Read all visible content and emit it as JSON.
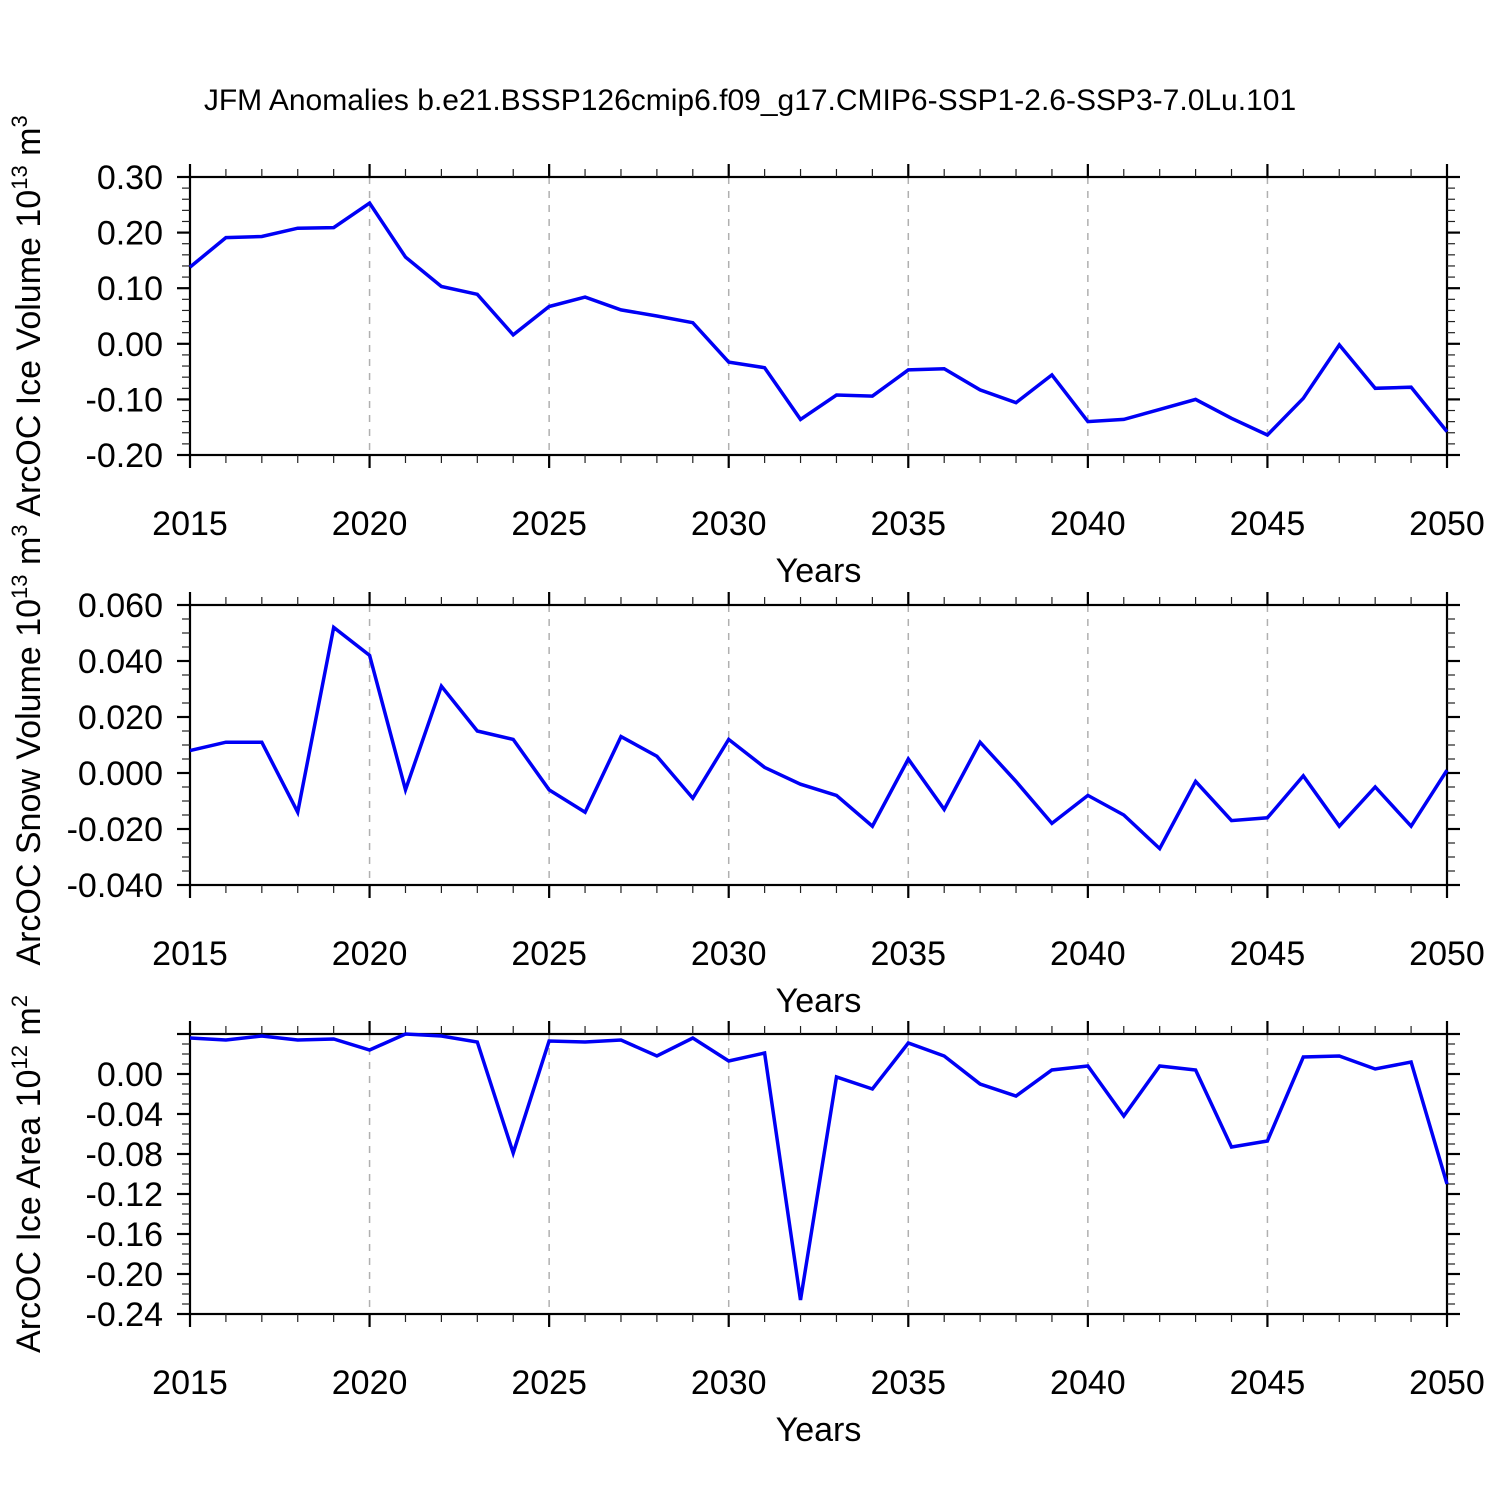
{
  "title": "JFM Anomalies b.e21.BSSP126cmip6.f09_g17.CMIP6-SSP1-2.6-SSP3-7.0Lu.101",
  "colors": {
    "line": "#0000f5",
    "frame": "#000000",
    "grid": "#b0b0b0",
    "minor_tick": "#222222",
    "text": "#000000",
    "background": "#ffffff"
  },
  "x_axis": {
    "label": "Years",
    "start": 2015,
    "end": 2050,
    "major_tick_labels": [
      "2015",
      "2020",
      "2025",
      "2030",
      "2035",
      "2040",
      "2045",
      "2050"
    ],
    "major_step": 5,
    "minor_step": 1,
    "gridline_years": [
      2020,
      2025,
      2030,
      2035,
      2040,
      2045
    ]
  },
  "chart_data": [
    {
      "type": "line",
      "name": "ice-volume",
      "ylabel_text": "ArcOC Ice Volume 10^13 m^3",
      "ylabel_parts": [
        {
          "t": "ArcOC Ice Volume 10"
        },
        {
          "sup": "13"
        },
        {
          "t": " m"
        },
        {
          "sup": "3"
        }
      ],
      "xlabel": "Years",
      "ylim": [
        -0.2,
        0.3
      ],
      "ytick_step": 0.1,
      "yminor_step": 0.02,
      "ytick_decimals": 2,
      "ytick_labels": [
        "0.30",
        "0.20",
        "0.10",
        "0.00",
        "-0.10",
        "-0.20"
      ],
      "grid": "vertical-dashed",
      "legend": "none",
      "x": [
        2015,
        2016,
        2017,
        2018,
        2019,
        2020,
        2021,
        2022,
        2023,
        2024,
        2025,
        2026,
        2027,
        2028,
        2029,
        2030,
        2031,
        2032,
        2033,
        2034,
        2035,
        2036,
        2037,
        2038,
        2039,
        2040,
        2041,
        2042,
        2043,
        2044,
        2045,
        2046,
        2047,
        2048,
        2049,
        2050
      ],
      "values": [
        0.138,
        0.191,
        0.193,
        0.208,
        0.209,
        0.253,
        0.156,
        0.103,
        0.089,
        0.016,
        0.067,
        0.084,
        0.061,
        0.05,
        0.038,
        -0.033,
        -0.043,
        -0.136,
        -0.092,
        -0.094,
        -0.047,
        -0.045,
        -0.083,
        -0.106,
        -0.056,
        -0.14,
        -0.136,
        -0.118,
        -0.1,
        -0.134,
        -0.164,
        -0.098,
        -0.002,
        -0.08,
        -0.078,
        -0.158
      ]
    },
    {
      "type": "line",
      "name": "snow-volume",
      "ylabel_text": "ArcOC Snow Volume 10^13 m^3",
      "ylabel_parts": [
        {
          "t": "ArcOC Snow Volume 10"
        },
        {
          "sup": "13"
        },
        {
          "t": " m"
        },
        {
          "sup": "3"
        }
      ],
      "xlabel": "Years",
      "ylim": [
        -0.04,
        0.06
      ],
      "ytick_step": 0.02,
      "yminor_step": 0.005,
      "ytick_decimals": 3,
      "ytick_labels": [
        "0.060",
        "0.040",
        "0.020",
        "0.000",
        "-0.020",
        "-0.040"
      ],
      "grid": "vertical-dashed",
      "legend": "none",
      "x": [
        2015,
        2016,
        2017,
        2018,
        2019,
        2020,
        2021,
        2022,
        2023,
        2024,
        2025,
        2026,
        2027,
        2028,
        2029,
        2030,
        2031,
        2032,
        2033,
        2034,
        2035,
        2036,
        2037,
        2038,
        2039,
        2040,
        2041,
        2042,
        2043,
        2044,
        2045,
        2046,
        2047,
        2048,
        2049,
        2050
      ],
      "values": [
        0.008,
        0.011,
        0.011,
        -0.014,
        0.052,
        0.042,
        -0.006,
        0.031,
        0.015,
        0.012,
        -0.006,
        -0.014,
        0.013,
        0.006,
        -0.009,
        0.012,
        0.002,
        -0.004,
        -0.008,
        -0.019,
        0.005,
        -0.013,
        0.011,
        -0.003,
        -0.018,
        -0.008,
        -0.015,
        -0.027,
        -0.003,
        -0.017,
        -0.016,
        -0.001,
        -0.019,
        -0.005,
        -0.019,
        0.001
      ]
    },
    {
      "type": "line",
      "name": "ice-area",
      "ylabel_text": "ArcOC Ice Area 10^12 m^2",
      "ylabel_parts": [
        {
          "t": "ArcOC Ice Area 10"
        },
        {
          "sup": "12"
        },
        {
          "t": " m"
        },
        {
          "sup": "2"
        }
      ],
      "xlabel": "Years",
      "ylim": [
        -0.24,
        0.04
      ],
      "ytick_step": 0.04,
      "yminor_step": 0.01,
      "ytick_decimals": 2,
      "ytick_labels": [
        "0.00",
        "-0.04",
        "-0.08",
        "-0.12",
        "-0.16",
        "-0.20",
        "-0.24"
      ],
      "ytick_label_max": 0.0,
      "grid": "vertical-dashed",
      "legend": "none",
      "x": [
        2015,
        2016,
        2017,
        2018,
        2019,
        2020,
        2021,
        2022,
        2023,
        2024,
        2025,
        2026,
        2027,
        2028,
        2029,
        2030,
        2031,
        2032,
        2033,
        2034,
        2035,
        2036,
        2037,
        2038,
        2039,
        2040,
        2041,
        2042,
        2043,
        2044,
        2045,
        2046,
        2047,
        2048,
        2049,
        2050
      ],
      "values": [
        0.036,
        0.034,
        0.038,
        0.034,
        0.035,
        0.024,
        0.04,
        0.038,
        0.032,
        -0.079,
        0.033,
        0.032,
        0.034,
        0.018,
        0.036,
        0.013,
        0.021,
        -0.226,
        -0.003,
        -0.015,
        0.031,
        0.018,
        -0.01,
        -0.022,
        0.004,
        0.008,
        -0.042,
        0.008,
        0.004,
        -0.073,
        -0.067,
        0.017,
        0.018,
        0.005,
        0.012,
        -0.11
      ]
    }
  ]
}
